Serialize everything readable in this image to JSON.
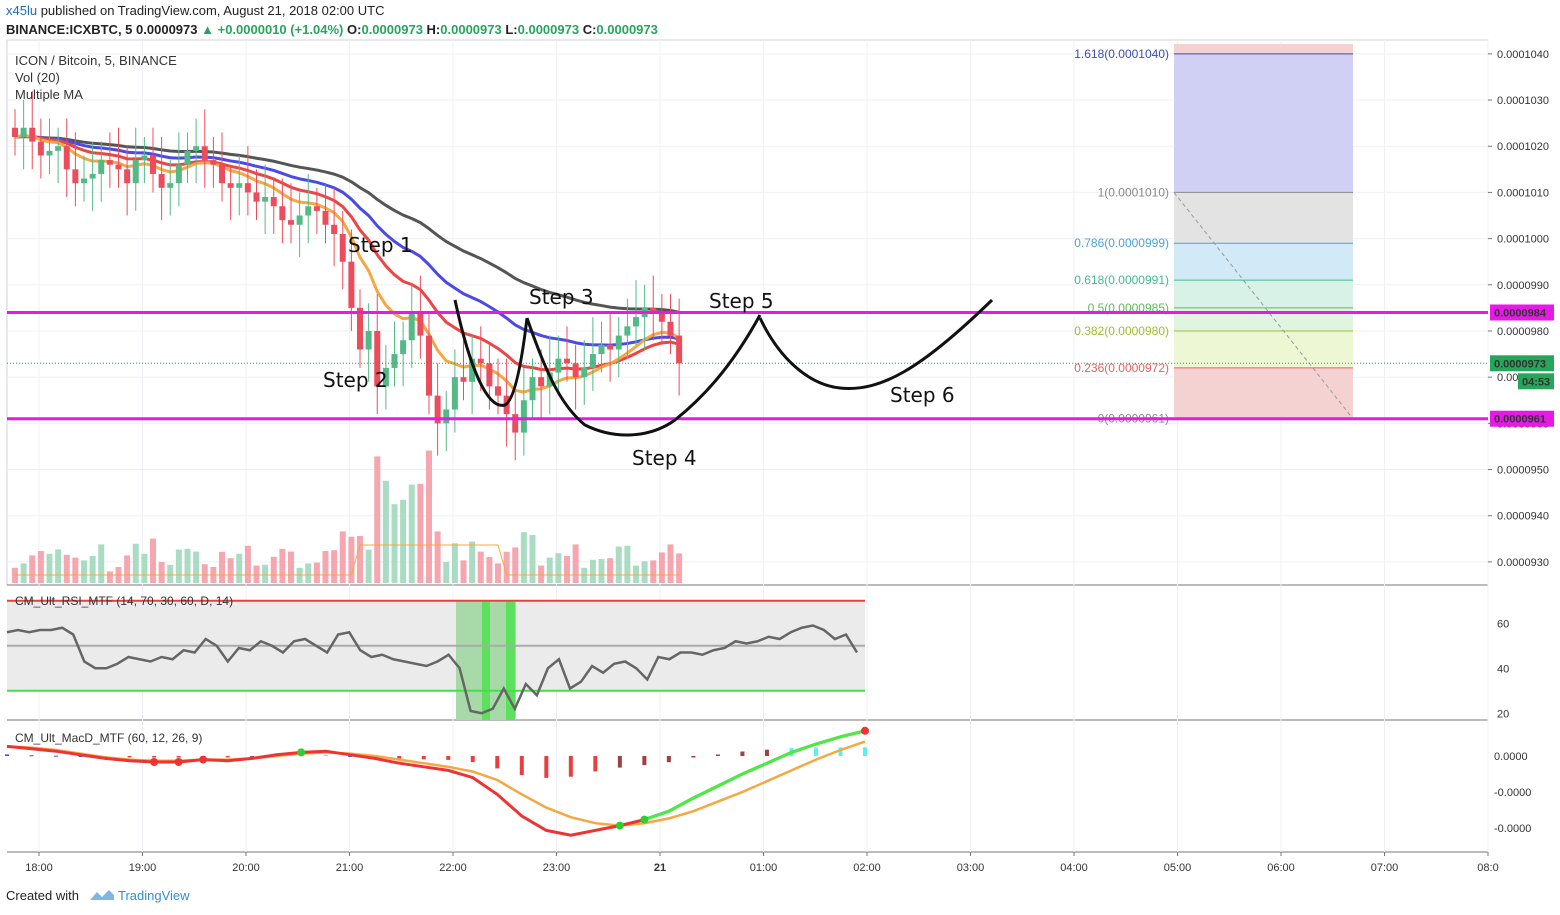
{
  "header": {
    "user": "x45lu",
    "published_text": "published on TradingView.com, August 21, 2018 02:00 UTC",
    "symbol": "BINANCE:ICXBTC, 5",
    "last": "0.0000973",
    "change": "+0.0000010 (+1.04%)",
    "o_label": "O:",
    "o": "0.0000973",
    "h_label": "H:",
    "h": "0.0000973",
    "l_label": "L:",
    "l": "0.0000973",
    "c_label": "C:",
    "c": "0.0000973"
  },
  "legend": {
    "title": "ICON / Bitcoin, 5, BINANCE",
    "vol": "Vol (20)",
    "ma": "Multiple MA"
  },
  "panes": {
    "rsi_title": "CM_Ult_RSI_MTF (14, 70, 30, 60, D, 14)",
    "macd_title": "CM_Ult_MacD_MTF (60, 12, 26, 9)"
  },
  "footer": {
    "created": "Created with",
    "brand": "TradingView"
  },
  "colors": {
    "magenta": "#e619e6",
    "up": "#53b987",
    "down": "#eb4d5c",
    "ma_gray": "#555555",
    "ma_blue": "#4a4ae6",
    "ma_red": "#ee4444",
    "ma_orange": "#f5a742",
    "price_green": "#26a65b"
  },
  "chart_data": [
    {
      "type": "candlestick",
      "title": "ICON / Bitcoin, 5, BINANCE",
      "x_ticks": [
        "18:00",
        "19:00",
        "20:00",
        "21:00",
        "22:00",
        "23:00",
        "21",
        "01:00",
        "02:00",
        "03:00",
        "04:00",
        "05:00",
        "06:00",
        "07:00",
        "08:0"
      ],
      "y_ticks": [
        "0.0001040",
        "0.0001030",
        "0.0001020",
        "0.0001010",
        "0.0001000",
        "0.0000990",
        "0.0000980",
        "0.0000970",
        "0.0000960",
        "0.0000950",
        "0.0000940",
        "0.0000930"
      ],
      "ylim": [
        9.25e-05,
        0.0001043
      ],
      "price_labels": [
        {
          "value": "0.0000984",
          "kind": "support_resistance"
        },
        {
          "value": "0.0000973",
          "kind": "last"
        },
        {
          "value": "04:53",
          "kind": "countdown"
        },
        {
          "value": "0.0000961",
          "kind": "support_resistance"
        }
      ],
      "horizontal_lines": [
        9.84e-05,
        9.61e-05
      ],
      "close_approx": [
        0.0001022,
        0.0001024,
        0.0001021,
        0.0001018,
        0.0001019,
        0.000102,
        0.0001015,
        0.0001012,
        0.0001013,
        0.0001014,
        0.0001017,
        0.0001016,
        0.0001015,
        0.0001012,
        0.0001017,
        0.0001018,
        0.0001014,
        0.0001011,
        0.0001012,
        0.0001016,
        0.0001019,
        0.000102,
        0.0001017,
        0.0001016,
        0.0001012,
        0.0001011,
        0.0001012,
        0.000101,
        0.0001008,
        0.0001009,
        0.0001007,
        0.0001004,
        0.0001003,
        0.0001005,
        0.0001007,
        0.0001006,
        0.0001003,
        0.0001001,
        9.95e-05,
        9.85e-05,
        9.76e-05,
        9.8e-05,
        9.68e-05,
        9.72e-05,
        9.75e-05,
        9.78e-05,
        9.84e-05,
        9.79e-05,
        9.66e-05,
        9.6e-05,
        9.63e-05,
        9.7e-05,
        9.69e-05,
        9.74e-05,
        9.73e-05,
        9.68e-05,
        9.66e-05,
        9.62e-05,
        9.58e-05,
        9.65e-05,
        9.7e-05,
        9.68e-05,
        9.71e-05,
        9.74e-05,
        9.73e-05,
        9.7e-05,
        9.72e-05,
        9.75e-05,
        9.77e-05,
        9.76e-05,
        9.79e-05,
        9.81e-05,
        9.83e-05,
        9.85e-05,
        9.84e-05,
        9.82e-05,
        9.79e-05,
        9.73e-05
      ],
      "annotations": [
        "Step 1",
        "Step 2",
        "Step 3",
        "Step 4",
        "Step 5",
        "Step 6"
      ],
      "fibonacci": [
        {
          "label": "1.618(0.0001040)",
          "level": 1.618,
          "price": 0.000104
        },
        {
          "label": "1(0.0001010)",
          "level": 1,
          "price": 0.000101
        },
        {
          "label": "0.786(0.0000999)",
          "level": 0.786,
          "price": 9.99e-05
        },
        {
          "label": "0.618(0.0000991)",
          "level": 0.618,
          "price": 9.91e-05
        },
        {
          "label": "0.5(0.0000985)",
          "level": 0.5,
          "price": 9.85e-05
        },
        {
          "label": "0.382(0.0000980)",
          "level": 0.382,
          "price": 9.8e-05
        },
        {
          "label": "0.236(0.0000972)",
          "level": 0.236,
          "price": 9.72e-05
        },
        {
          "label": "0(0.0000961)",
          "level": 0,
          "price": 9.61e-05
        }
      ]
    },
    {
      "type": "line",
      "title": "CM_Ult_RSI_MTF (14, 70, 30, 60, D, 14)",
      "y_ticks": [
        "60",
        "40",
        "20"
      ],
      "ylim": [
        17,
        77
      ],
      "bands": {
        "upper": 70,
        "mid": 50,
        "lower": 30
      },
      "series": [
        {
          "values": [
            56,
            57,
            56,
            57,
            57,
            58,
            55,
            43,
            40,
            40,
            42,
            45,
            44,
            43,
            45,
            44,
            48,
            47,
            53,
            50,
            43,
            49,
            48,
            52,
            50,
            47,
            52,
            53,
            50,
            47,
            55,
            56,
            48,
            45,
            46,
            44,
            43,
            42,
            41,
            43,
            46,
            40,
            21,
            20,
            22,
            31,
            22,
            33,
            28,
            40,
            44,
            31,
            34,
            41,
            38,
            42,
            43,
            40,
            35,
            45,
            44,
            47,
            47,
            46,
            48,
            49,
            52,
            51,
            52,
            54,
            53,
            56,
            58,
            59,
            57,
            53,
            55,
            47
          ]
        }
      ]
    },
    {
      "type": "line",
      "title": "CM_Ult_MacD_MTF (60, 12, 26, 9)",
      "y_ticks": [
        "0.0000",
        "-0.0000",
        "-0.0000"
      ],
      "series": [
        {
          "values": [
            0.8,
            0.6,
            0.4,
            0.1,
            -0.2,
            -0.4,
            -0.5,
            -0.5,
            -0.3,
            -0.4,
            -0.2,
            0.1,
            0.3,
            0.4,
            0.1,
            -0.2,
            -0.6,
            -0.9,
            -1.2,
            -1.8,
            -3.2,
            -5.0,
            -6.2,
            -6.6,
            -6.2,
            -5.8,
            -5.3,
            -4.6,
            -3.5,
            -2.5,
            -1.5,
            -0.6,
            0.3,
            1.0,
            1.6,
            2.1
          ]
        },
        {
          "values": [
            0.8,
            0.7,
            0.5,
            0.2,
            -0.1,
            -0.3,
            -0.4,
            -0.4,
            -0.3,
            -0.3,
            -0.2,
            0.0,
            0.2,
            0.3,
            0.2,
            0.0,
            -0.3,
            -0.6,
            -0.9,
            -1.3,
            -2.0,
            -3.2,
            -4.3,
            -5.1,
            -5.6,
            -5.8,
            -5.6,
            -5.2,
            -4.6,
            -3.8,
            -3.0,
            -2.1,
            -1.2,
            -0.3,
            0.5,
            1.2
          ]
        }
      ]
    }
  ]
}
